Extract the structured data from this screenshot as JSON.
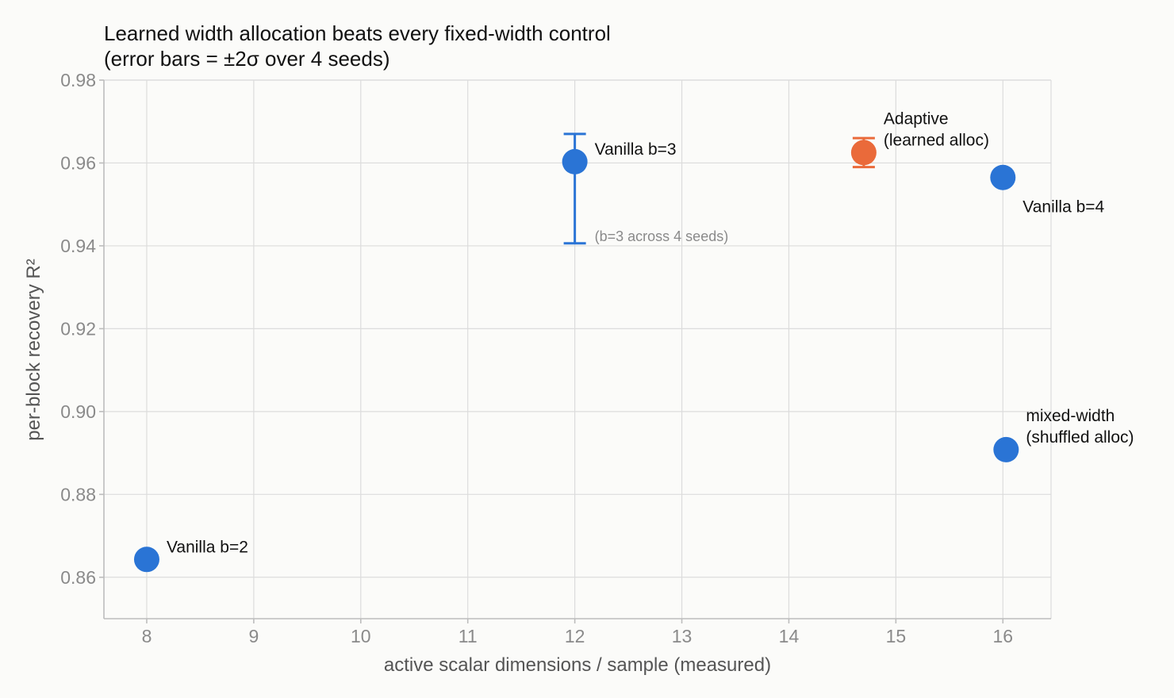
{
  "chart_data": {
    "type": "scatter",
    "title": [
      "Learned width allocation beats every fixed-width control",
      "(error bars = ±2σ over 4 seeds)"
    ],
    "xlabel": "active scalar dimensions / sample (measured)",
    "ylabel": "per-block recovery R²",
    "xlim": [
      7.6,
      16.45
    ],
    "ylim": [
      0.85,
      0.98
    ],
    "xticks": [
      "8",
      "9",
      "10",
      "11",
      "12",
      "13",
      "14",
      "15",
      "16"
    ],
    "yticks": [
      "0.86",
      "0.88",
      "0.90",
      "0.92",
      "0.94",
      "0.96",
      "0.98"
    ],
    "grid": true,
    "colors": {
      "vanilla": "#2a74d5",
      "adaptive": "#ea6a3a"
    },
    "points": [
      {
        "id": "vanilla-b2",
        "x": 8.0,
        "y": 0.8643,
        "color": "vanilla",
        "label": [
          "Vanilla b=2"
        ],
        "label_pos": "upper-right"
      },
      {
        "id": "vanilla-b3",
        "x": 12.0,
        "y": 0.9603,
        "color": "vanilla",
        "label": [
          "Vanilla b=3"
        ],
        "label_pos": "upper-right",
        "err_low": 0.9406,
        "err_high": 0.967
      },
      {
        "id": "adaptive",
        "x": 14.7,
        "y": 0.9625,
        "color": "adaptive",
        "label": [
          "Adaptive",
          "(learned alloc)"
        ],
        "label_pos": "upper-right",
        "err_low": 0.959,
        "err_high": 0.966
      },
      {
        "id": "vanilla-b4",
        "x": 16.0,
        "y": 0.9565,
        "color": "vanilla",
        "label": [
          "Vanilla b=4"
        ],
        "label_pos": "lower-right"
      },
      {
        "id": "mixed-width",
        "x": 16.03,
        "y": 0.8908,
        "color": "vanilla",
        "label": [
          "mixed-width",
          "(shuffled alloc)"
        ],
        "label_pos": "upper-right"
      }
    ],
    "annotations": [
      {
        "text": "(b=3 across 4 seeds)",
        "x": 12.0,
        "y": 0.9406
      }
    ]
  }
}
